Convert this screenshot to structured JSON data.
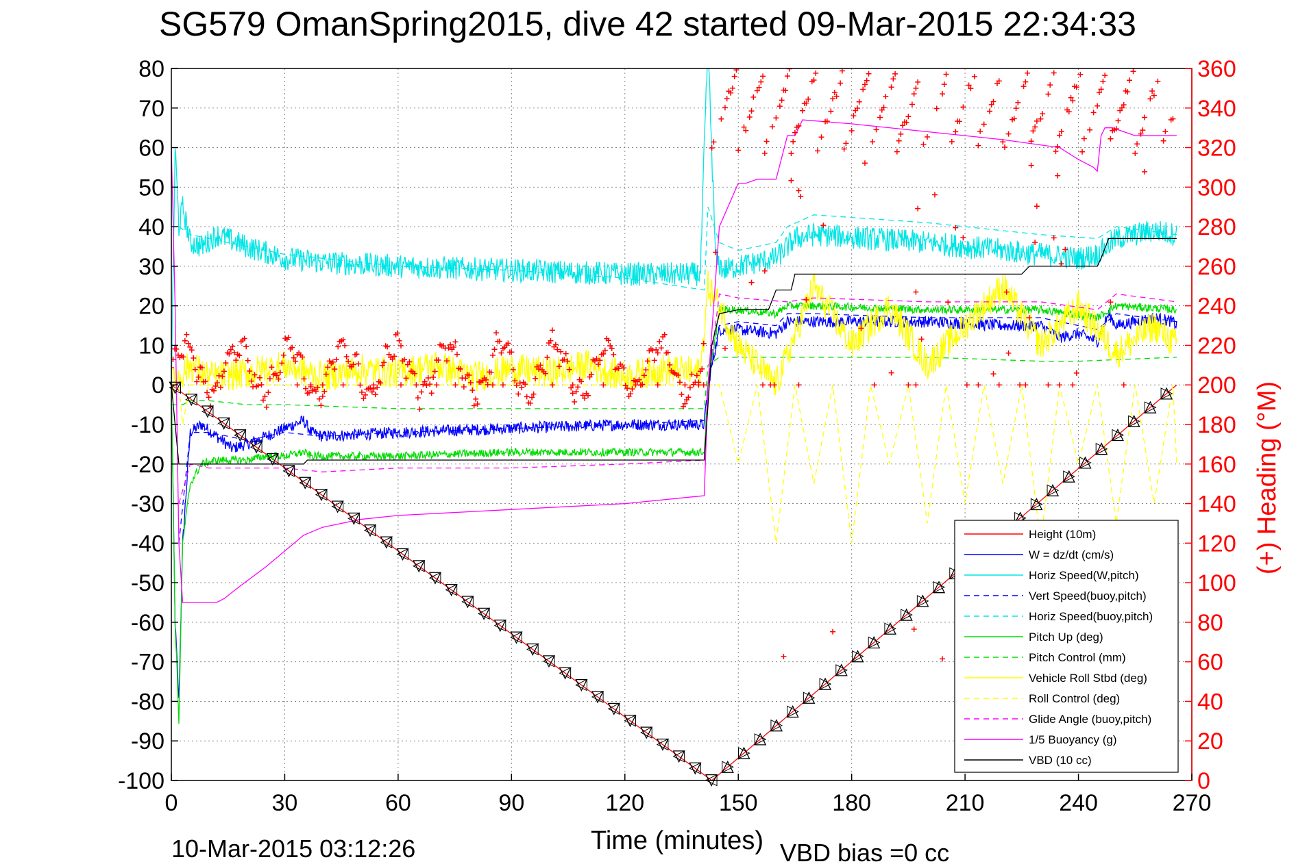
{
  "chart_data": {
    "type": "line",
    "title": "SG579 OmanSpring2015, dive 42 started 09-Mar-2015 22:34:33",
    "xlabel": "Time (minutes)",
    "ylabel": "",
    "ylabel_right": "(+) Heading (°M)",
    "footer_left": "10-Mar-2015 03:12:26",
    "footer_right": "VBD bias =0 cc",
    "xlim": [
      0,
      270
    ],
    "ylim": [
      -100,
      80
    ],
    "ylim_right": [
      0,
      360
    ],
    "grid": true,
    "legend_position": "bottom-right",
    "x_ticks": [
      {
        "value": 0,
        "label": "0"
      },
      {
        "value": 30,
        "label": "30"
      },
      {
        "value": 60,
        "label": "60"
      },
      {
        "value": 90,
        "label": "90"
      },
      {
        "value": 120,
        "label": "120"
      },
      {
        "value": 150,
        "label": "150"
      },
      {
        "value": 180,
        "label": "180"
      },
      {
        "value": 210,
        "label": "210"
      },
      {
        "value": 240,
        "label": "240"
      },
      {
        "value": 270,
        "label": "270"
      }
    ],
    "y_ticks": [
      {
        "value": 80,
        "label": "80"
      },
      {
        "value": 70,
        "label": "70"
      },
      {
        "value": 60,
        "label": "60"
      },
      {
        "value": 50,
        "label": "50"
      },
      {
        "value": 40,
        "label": "40"
      },
      {
        "value": 30,
        "label": "30"
      },
      {
        "value": 20,
        "label": "20"
      },
      {
        "value": 10,
        "label": "10"
      },
      {
        "value": 0,
        "label": "0"
      },
      {
        "value": -10,
        "label": "-10"
      },
      {
        "value": -20,
        "label": "-20"
      },
      {
        "value": -30,
        "label": "-30"
      },
      {
        "value": -40,
        "label": "-40"
      },
      {
        "value": -50,
        "label": "-50"
      },
      {
        "value": -60,
        "label": "-60"
      },
      {
        "value": -70,
        "label": "-70"
      },
      {
        "value": -80,
        "label": "-80"
      },
      {
        "value": -90,
        "label": "-90"
      },
      {
        "value": -100,
        "label": "-100"
      }
    ],
    "y_ticks_right": [
      {
        "value": 360,
        "label": "360"
      },
      {
        "value": 340,
        "label": "340"
      },
      {
        "value": 320,
        "label": "320"
      },
      {
        "value": 300,
        "label": "300"
      },
      {
        "value": 280,
        "label": "280"
      },
      {
        "value": 260,
        "label": "260"
      },
      {
        "value": 240,
        "label": "240"
      },
      {
        "value": 220,
        "label": "220"
      },
      {
        "value": 200,
        "label": "200"
      },
      {
        "value": 180,
        "label": "180"
      },
      {
        "value": 160,
        "label": "160"
      },
      {
        "value": 140,
        "label": "140"
      },
      {
        "value": 120,
        "label": "120"
      },
      {
        "value": 100,
        "label": "100"
      },
      {
        "value": 80,
        "label": "80"
      },
      {
        "value": 60,
        "label": "60"
      },
      {
        "value": 40,
        "label": "40"
      },
      {
        "value": 20,
        "label": "20"
      },
      {
        "value": 0,
        "label": "0"
      }
    ],
    "series": [
      {
        "name": "Height (10m)",
        "color": "#ff0000",
        "dash": "solid",
        "x": [
          0,
          143,
          266
        ],
        "y": [
          0,
          -100,
          0
        ]
      },
      {
        "name": "W = dz/dt (cm/s)",
        "color": "#0000ff",
        "dash": "solid",
        "noise": 1.5,
        "x": [
          0,
          1,
          2,
          3,
          5,
          8,
          12,
          16,
          20,
          25,
          30,
          35,
          37,
          40,
          60,
          90,
          120,
          141,
          142,
          145,
          150,
          160,
          163,
          170,
          180,
          200,
          220,
          230,
          235,
          240,
          245,
          248,
          250,
          255,
          260,
          265,
          266
        ],
        "y": [
          0,
          -60,
          -80,
          -40,
          -12,
          -10,
          -13,
          -16,
          -15,
          -13,
          -11,
          -9,
          -12,
          -13,
          -12,
          -11,
          -10,
          -10,
          0,
          14,
          14,
          13,
          16,
          16,
          16,
          16,
          15,
          15,
          12,
          13,
          11,
          18,
          15,
          16,
          17,
          16,
          15
        ]
      },
      {
        "name": "Horiz Speed(W,pitch)",
        "color": "#00e5e5",
        "dash": "solid",
        "noise": 3,
        "x": [
          0,
          1,
          2,
          3,
          5,
          8,
          12,
          20,
          30,
          40,
          60,
          90,
          120,
          140,
          141,
          142,
          144,
          146,
          150,
          160,
          165,
          170,
          200,
          230,
          240,
          245,
          250,
          255,
          260,
          266
        ],
        "y": [
          0,
          60,
          40,
          45,
          36,
          35,
          38,
          35,
          32,
          31,
          30,
          29,
          28,
          28,
          60,
          85,
          32,
          29,
          30,
          32,
          37,
          38,
          36,
          33,
          32,
          33,
          37,
          38,
          39,
          38
        ]
      },
      {
        "name": "Vert Speed(buoy,pitch)",
        "color": "#0000ff",
        "dash": "dashed",
        "x": [
          2,
          5,
          10,
          20,
          30,
          40,
          60,
          90,
          120,
          141,
          142,
          145,
          150,
          160,
          163,
          170,
          200,
          230,
          245,
          250,
          266
        ],
        "y": [
          -40,
          -12,
          -12,
          -14,
          -12,
          -13,
          -12,
          -11,
          -10,
          -9,
          0,
          15,
          16,
          15,
          18,
          18,
          17,
          17,
          14,
          18,
          16
        ]
      },
      {
        "name": "Horiz Speed(buoy,pitch)",
        "color": "#00e5e5",
        "dash": "dashed",
        "x": [
          2,
          5,
          10,
          20,
          30,
          40,
          60,
          90,
          120,
          141,
          142,
          145,
          150,
          160,
          163,
          170,
          200,
          230,
          245,
          250,
          266
        ],
        "y": [
          40,
          38,
          37,
          35,
          33,
          32,
          30,
          29,
          27,
          24,
          45,
          36,
          34,
          36,
          40,
          43,
          41,
          38,
          37,
          40,
          38
        ]
      },
      {
        "name": "Pitch Up (deg)",
        "color": "#00dd00",
        "dash": "solid",
        "noise": 1,
        "x": [
          0,
          1,
          2,
          3,
          5,
          8,
          12,
          20,
          25,
          30,
          35,
          37,
          40,
          60,
          90,
          120,
          141,
          142,
          145,
          150,
          160,
          163,
          170,
          200,
          230,
          245,
          250,
          266
        ],
        "y": [
          0,
          -60,
          -85,
          -40,
          -25,
          -20,
          -19,
          -19,
          -18,
          -18,
          -17,
          -18,
          -18,
          -18,
          -17,
          -17,
          -17,
          0,
          19,
          19,
          18,
          20,
          20,
          19,
          19,
          17,
          20,
          19
        ]
      },
      {
        "name": "Pitch Control (mm)",
        "color": "#00dd00",
        "dash": "dashed",
        "x": [
          0,
          3,
          5,
          10,
          20,
          30,
          60,
          90,
          120,
          141,
          142,
          145,
          150,
          200,
          230,
          240,
          266
        ],
        "y": [
          -5,
          -5,
          -4,
          -4,
          -5,
          -5,
          -6,
          -6,
          -6,
          -6,
          5,
          7,
          7,
          7,
          6,
          6,
          7
        ]
      },
      {
        "name": "Vehicle Roll Stbd (deg)",
        "color": "#ffff00",
        "dash": "solid",
        "noise": 4,
        "x": [
          0,
          5,
          10,
          20,
          30,
          40,
          50,
          60,
          70,
          80,
          90,
          100,
          110,
          120,
          130,
          140,
          142,
          145,
          150,
          160,
          170,
          180,
          190,
          200,
          210,
          220,
          230,
          240,
          250,
          260,
          266
        ],
        "y": [
          0,
          5,
          2,
          3,
          5,
          2,
          4,
          3,
          5,
          2,
          4,
          3,
          5,
          2,
          4,
          3,
          25,
          20,
          10,
          0,
          25,
          10,
          20,
          5,
          15,
          25,
          10,
          20,
          8,
          15,
          10
        ]
      },
      {
        "name": "Roll Control (deg)",
        "color": "#ffff00",
        "dash": "dashed",
        "x": [
          0,
          2,
          3,
          5,
          140,
          142,
          145,
          150,
          155,
          160,
          165,
          170,
          175,
          180,
          185,
          190,
          195,
          200,
          205,
          210,
          215,
          220,
          225,
          230,
          235,
          240,
          245,
          250,
          255,
          260,
          265,
          266
        ],
        "y": [
          0,
          0,
          -10,
          0,
          0,
          0,
          0,
          -20,
          0,
          -40,
          0,
          -25,
          0,
          -40,
          0,
          -20,
          0,
          -35,
          0,
          -30,
          0,
          -25,
          0,
          -40,
          0,
          -20,
          0,
          -35,
          0,
          -30,
          0,
          -20
        ]
      },
      {
        "name": "Glide Angle (buoy,pitch)",
        "color": "#ff00ff",
        "dash": "dashed",
        "x": [
          2,
          5,
          10,
          20,
          30,
          40,
          60,
          90,
          120,
          141,
          142,
          145,
          150,
          163,
          170,
          200,
          230,
          245,
          250,
          266
        ],
        "y": [
          -30,
          -20,
          -21,
          -21,
          -21,
          -22,
          -21,
          -21,
          -20,
          -19,
          0,
          23,
          22,
          21,
          22,
          21,
          21,
          19,
          23,
          21
        ]
      },
      {
        "name": "1/5 Buoyancy (g)",
        "color": "#ff00ff",
        "dash": "solid",
        "x": [
          0,
          1,
          2,
          3,
          5,
          8,
          12,
          14,
          18,
          25,
          30,
          35,
          40,
          50,
          60,
          80,
          100,
          120,
          141,
          142,
          145,
          150,
          152,
          155,
          160,
          163,
          165,
          167,
          180,
          200,
          220,
          235,
          240,
          244,
          245,
          246,
          247,
          249,
          255,
          260,
          265,
          266
        ],
        "y": [
          60,
          20,
          -40,
          -55,
          -55,
          -55,
          -55,
          -54,
          -51,
          -46,
          -42,
          -38,
          -36,
          -34,
          -33,
          -32,
          -31,
          -30,
          -28,
          0,
          40,
          51,
          51,
          52,
          52,
          63,
          63,
          67,
          66,
          64,
          62,
          60,
          57,
          55,
          54,
          63,
          65,
          65,
          63,
          63,
          63,
          63
        ]
      },
      {
        "name": "VBD (10 cc)",
        "color": "#000000",
        "dash": "solid",
        "x": [
          0,
          2,
          3,
          5,
          30,
          35,
          36,
          60,
          90,
          141,
          142,
          143,
          145,
          150,
          158,
          160,
          164,
          165,
          180,
          200,
          225,
          227,
          245,
          246,
          248,
          266
        ],
        "y": [
          0,
          -20,
          -20,
          -20,
          -20,
          -20,
          -19,
          -19,
          -19,
          -19,
          -5,
          10,
          18,
          19,
          19,
          24,
          24,
          28,
          28,
          28,
          28,
          30,
          30,
          32,
          37,
          37
        ]
      }
    ],
    "heading_points": {
      "name": "(+) Heading (°M)",
      "color": "#ff0000",
      "marker": "+",
      "axis": "right"
    }
  }
}
